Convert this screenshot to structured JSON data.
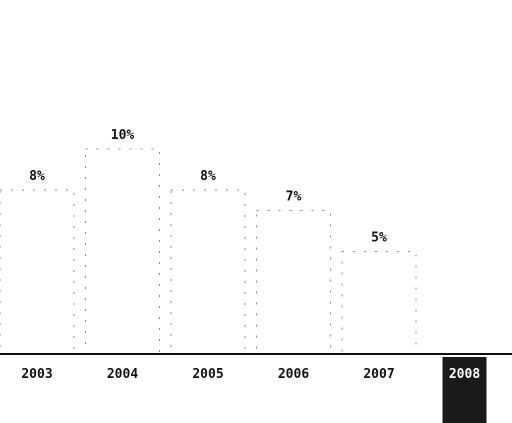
{
  "chart_data": {
    "type": "bar",
    "categories": [
      "2003",
      "2004",
      "2005",
      "2006",
      "2007",
      "2008"
    ],
    "values": [
      8,
      10,
      8,
      7,
      5,
      null
    ],
    "value_labels": [
      "8%",
      "10%",
      "8%",
      "7%",
      "5%",
      ""
    ],
    "title": "",
    "xlabel": "",
    "ylabel": "",
    "ylim": [
      0,
      14
    ],
    "grid": false,
    "legend": "none",
    "highlighted_category": "2008",
    "colors": {
      "axis": "#111111",
      "outline": "#555555",
      "highlight_bg": "#1a1a1a",
      "highlight_text": "#ffffff"
    }
  }
}
